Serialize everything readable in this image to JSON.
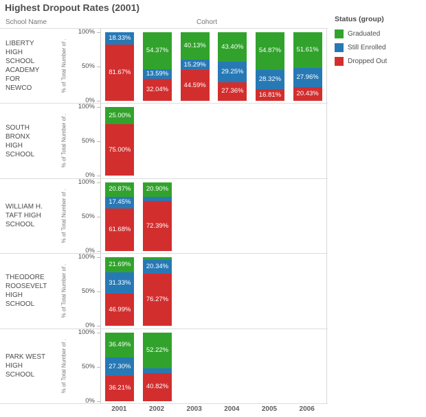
{
  "chart_data": {
    "type": "bar",
    "subtype": "stacked-percent",
    "title": "Highest Dropout Rates (2001)",
    "row_header": "School Name",
    "col_header": "Cohort",
    "y_axis_label": "% of Total Number of .",
    "y_ticks": [
      "100%",
      "50%",
      "0%"
    ],
    "x_categories": [
      "2001",
      "2002",
      "2003",
      "2004",
      "2005",
      "2006"
    ],
    "legend": {
      "title": "Status (group)",
      "entries": [
        {
          "label": "Graduated",
          "color": "#31a32c"
        },
        {
          "label": "Still Enrolled",
          "color": "#2779b5"
        },
        {
          "label": "Dropped Out",
          "color": "#d32e2e"
        }
      ]
    },
    "rows": [
      {
        "school": "LIBERTY HIGH SCHOOL ACADEMY FOR NEWCO",
        "bars": [
          {
            "year": "2001",
            "segments": [
              {
                "status": "Still Enrolled",
                "value": 18.33,
                "label": "18.33%"
              },
              {
                "status": "Dropped Out",
                "value": 81.67,
                "label": "81.67%"
              }
            ]
          },
          {
            "year": "2002",
            "segments": [
              {
                "status": "Graduated",
                "value": 54.37,
                "label": "54.37%"
              },
              {
                "status": "Still Enrolled",
                "value": 13.59,
                "label": "13.59%"
              },
              {
                "status": "Dropped Out",
                "value": 32.04,
                "label": "32.04%"
              }
            ]
          },
          {
            "year": "2003",
            "segments": [
              {
                "status": "Graduated",
                "value": 40.13,
                "label": "40.13%"
              },
              {
                "status": "Still Enrolled",
                "value": 15.29,
                "label": "15.29%"
              },
              {
                "status": "Dropped Out",
                "value": 44.59,
                "label": "44.59%"
              }
            ]
          },
          {
            "year": "2004",
            "segments": [
              {
                "status": "Graduated",
                "value": 43.4,
                "label": "43.40%"
              },
              {
                "status": "Still Enrolled",
                "value": 29.25,
                "label": "29.25%"
              },
              {
                "status": "Dropped Out",
                "value": 27.36,
                "label": "27.36%"
              }
            ]
          },
          {
            "year": "2005",
            "segments": [
              {
                "status": "Graduated",
                "value": 54.87,
                "label": "54.87%"
              },
              {
                "status": "Still Enrolled",
                "value": 28.32,
                "label": "28.32%"
              },
              {
                "status": "Dropped Out",
                "value": 16.81,
                "label": "16.81%"
              }
            ]
          },
          {
            "year": "2006",
            "segments": [
              {
                "status": "Graduated",
                "value": 51.61,
                "label": "51.61%"
              },
              {
                "status": "Still Enrolled",
                "value": 27.96,
                "label": "27.96%"
              },
              {
                "status": "Dropped Out",
                "value": 20.43,
                "label": "20.43%"
              }
            ]
          }
        ]
      },
      {
        "school": "SOUTH BRONX HIGH SCHOOL",
        "bars": [
          {
            "year": "2001",
            "segments": [
              {
                "status": "Graduated",
                "value": 25.0,
                "label": "25.00%"
              },
              {
                "status": "Dropped Out",
                "value": 75.0,
                "label": "75.00%"
              }
            ]
          }
        ]
      },
      {
        "school": "WILLIAM H. TAFT HIGH SCHOOL",
        "bars": [
          {
            "year": "2001",
            "segments": [
              {
                "status": "Graduated",
                "value": 20.87,
                "label": "20.87%"
              },
              {
                "status": "Still Enrolled",
                "value": 17.45,
                "label": "17.45%"
              },
              {
                "status": "Dropped Out",
                "value": 61.68,
                "label": "61.68%"
              }
            ]
          },
          {
            "year": "2002",
            "segments": [
              {
                "status": "Graduated",
                "value": 20.9,
                "label": "20.90%"
              },
              {
                "status": "Still Enrolled",
                "value": 6.71,
                "label": ""
              },
              {
                "status": "Dropped Out",
                "value": 72.39,
                "label": "72.39%"
              }
            ]
          }
        ]
      },
      {
        "school": "THEODORE ROOSEVELT HIGH SCHOOL",
        "bars": [
          {
            "year": "2001",
            "segments": [
              {
                "status": "Graduated",
                "value": 21.69,
                "label": "21.69%"
              },
              {
                "status": "Still Enrolled",
                "value": 31.33,
                "label": "31.33%"
              },
              {
                "status": "Dropped Out",
                "value": 46.99,
                "label": "46.99%"
              }
            ]
          },
          {
            "year": "2002",
            "segments": [
              {
                "status": "Graduated",
                "value": 3.39,
                "label": ""
              },
              {
                "status": "Still Enrolled",
                "value": 20.34,
                "label": "20.34%"
              },
              {
                "status": "Dropped Out",
                "value": 76.27,
                "label": "76.27%"
              }
            ]
          }
        ]
      },
      {
        "school": "PARK WEST HIGH SCHOOL",
        "bars": [
          {
            "year": "2001",
            "segments": [
              {
                "status": "Graduated",
                "value": 36.49,
                "label": "36.49%"
              },
              {
                "status": "Still Enrolled",
                "value": 27.3,
                "label": "27.30%"
              },
              {
                "status": "Dropped Out",
                "value": 36.21,
                "label": "36.21%"
              }
            ]
          },
          {
            "year": "2002",
            "segments": [
              {
                "status": "Graduated",
                "value": 52.22,
                "label": "52.22%"
              },
              {
                "status": "Still Enrolled",
                "value": 6.96,
                "label": ""
              },
              {
                "status": "Dropped Out",
                "value": 40.82,
                "label": "40.82%"
              }
            ]
          }
        ]
      }
    ]
  }
}
